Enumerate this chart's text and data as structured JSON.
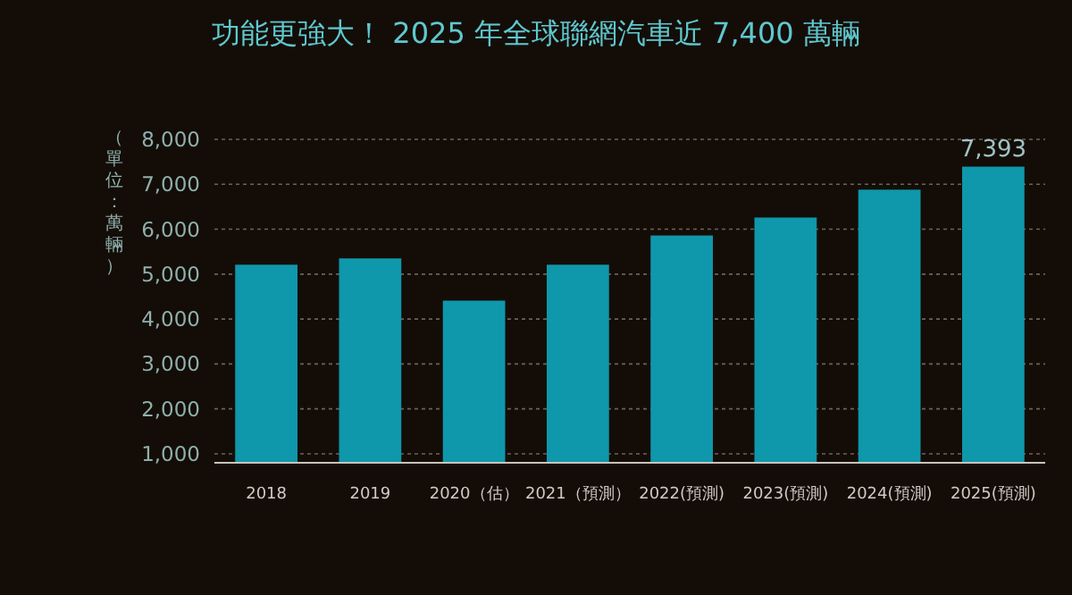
{
  "chart_data": {
    "type": "bar",
    "title": "功能更強大！ 2025 年全球聯網汽車近 7,400 萬輛",
    "ylabel": "（單位：萬輛）",
    "categories": [
      "2018",
      "2019",
      "2020（估）",
      "2021（預測）",
      "2022(預測)",
      "2023(預測)",
      "2024(預測)",
      "2025(預測)"
    ],
    "values": [
      5210,
      5350,
      4410,
      5210,
      5860,
      6260,
      6880,
      7393
    ],
    "value_labels": [
      null,
      null,
      null,
      null,
      null,
      null,
      null,
      "7,393"
    ],
    "color": "#0f97ab",
    "ylim": [
      800,
      8000
    ],
    "yticks": [
      {
        "value": 1000,
        "label": "1,000"
      },
      {
        "value": 2000,
        "label": "2,000"
      },
      {
        "value": 3000,
        "label": "3,000"
      },
      {
        "value": 4000,
        "label": "4,000"
      },
      {
        "value": 5000,
        "label": "5,000"
      },
      {
        "value": 6000,
        "label": "6,000"
      },
      {
        "value": 7000,
        "label": "7,000"
      },
      {
        "value": 8000,
        "label": "8,000"
      }
    ],
    "grid": "y"
  }
}
